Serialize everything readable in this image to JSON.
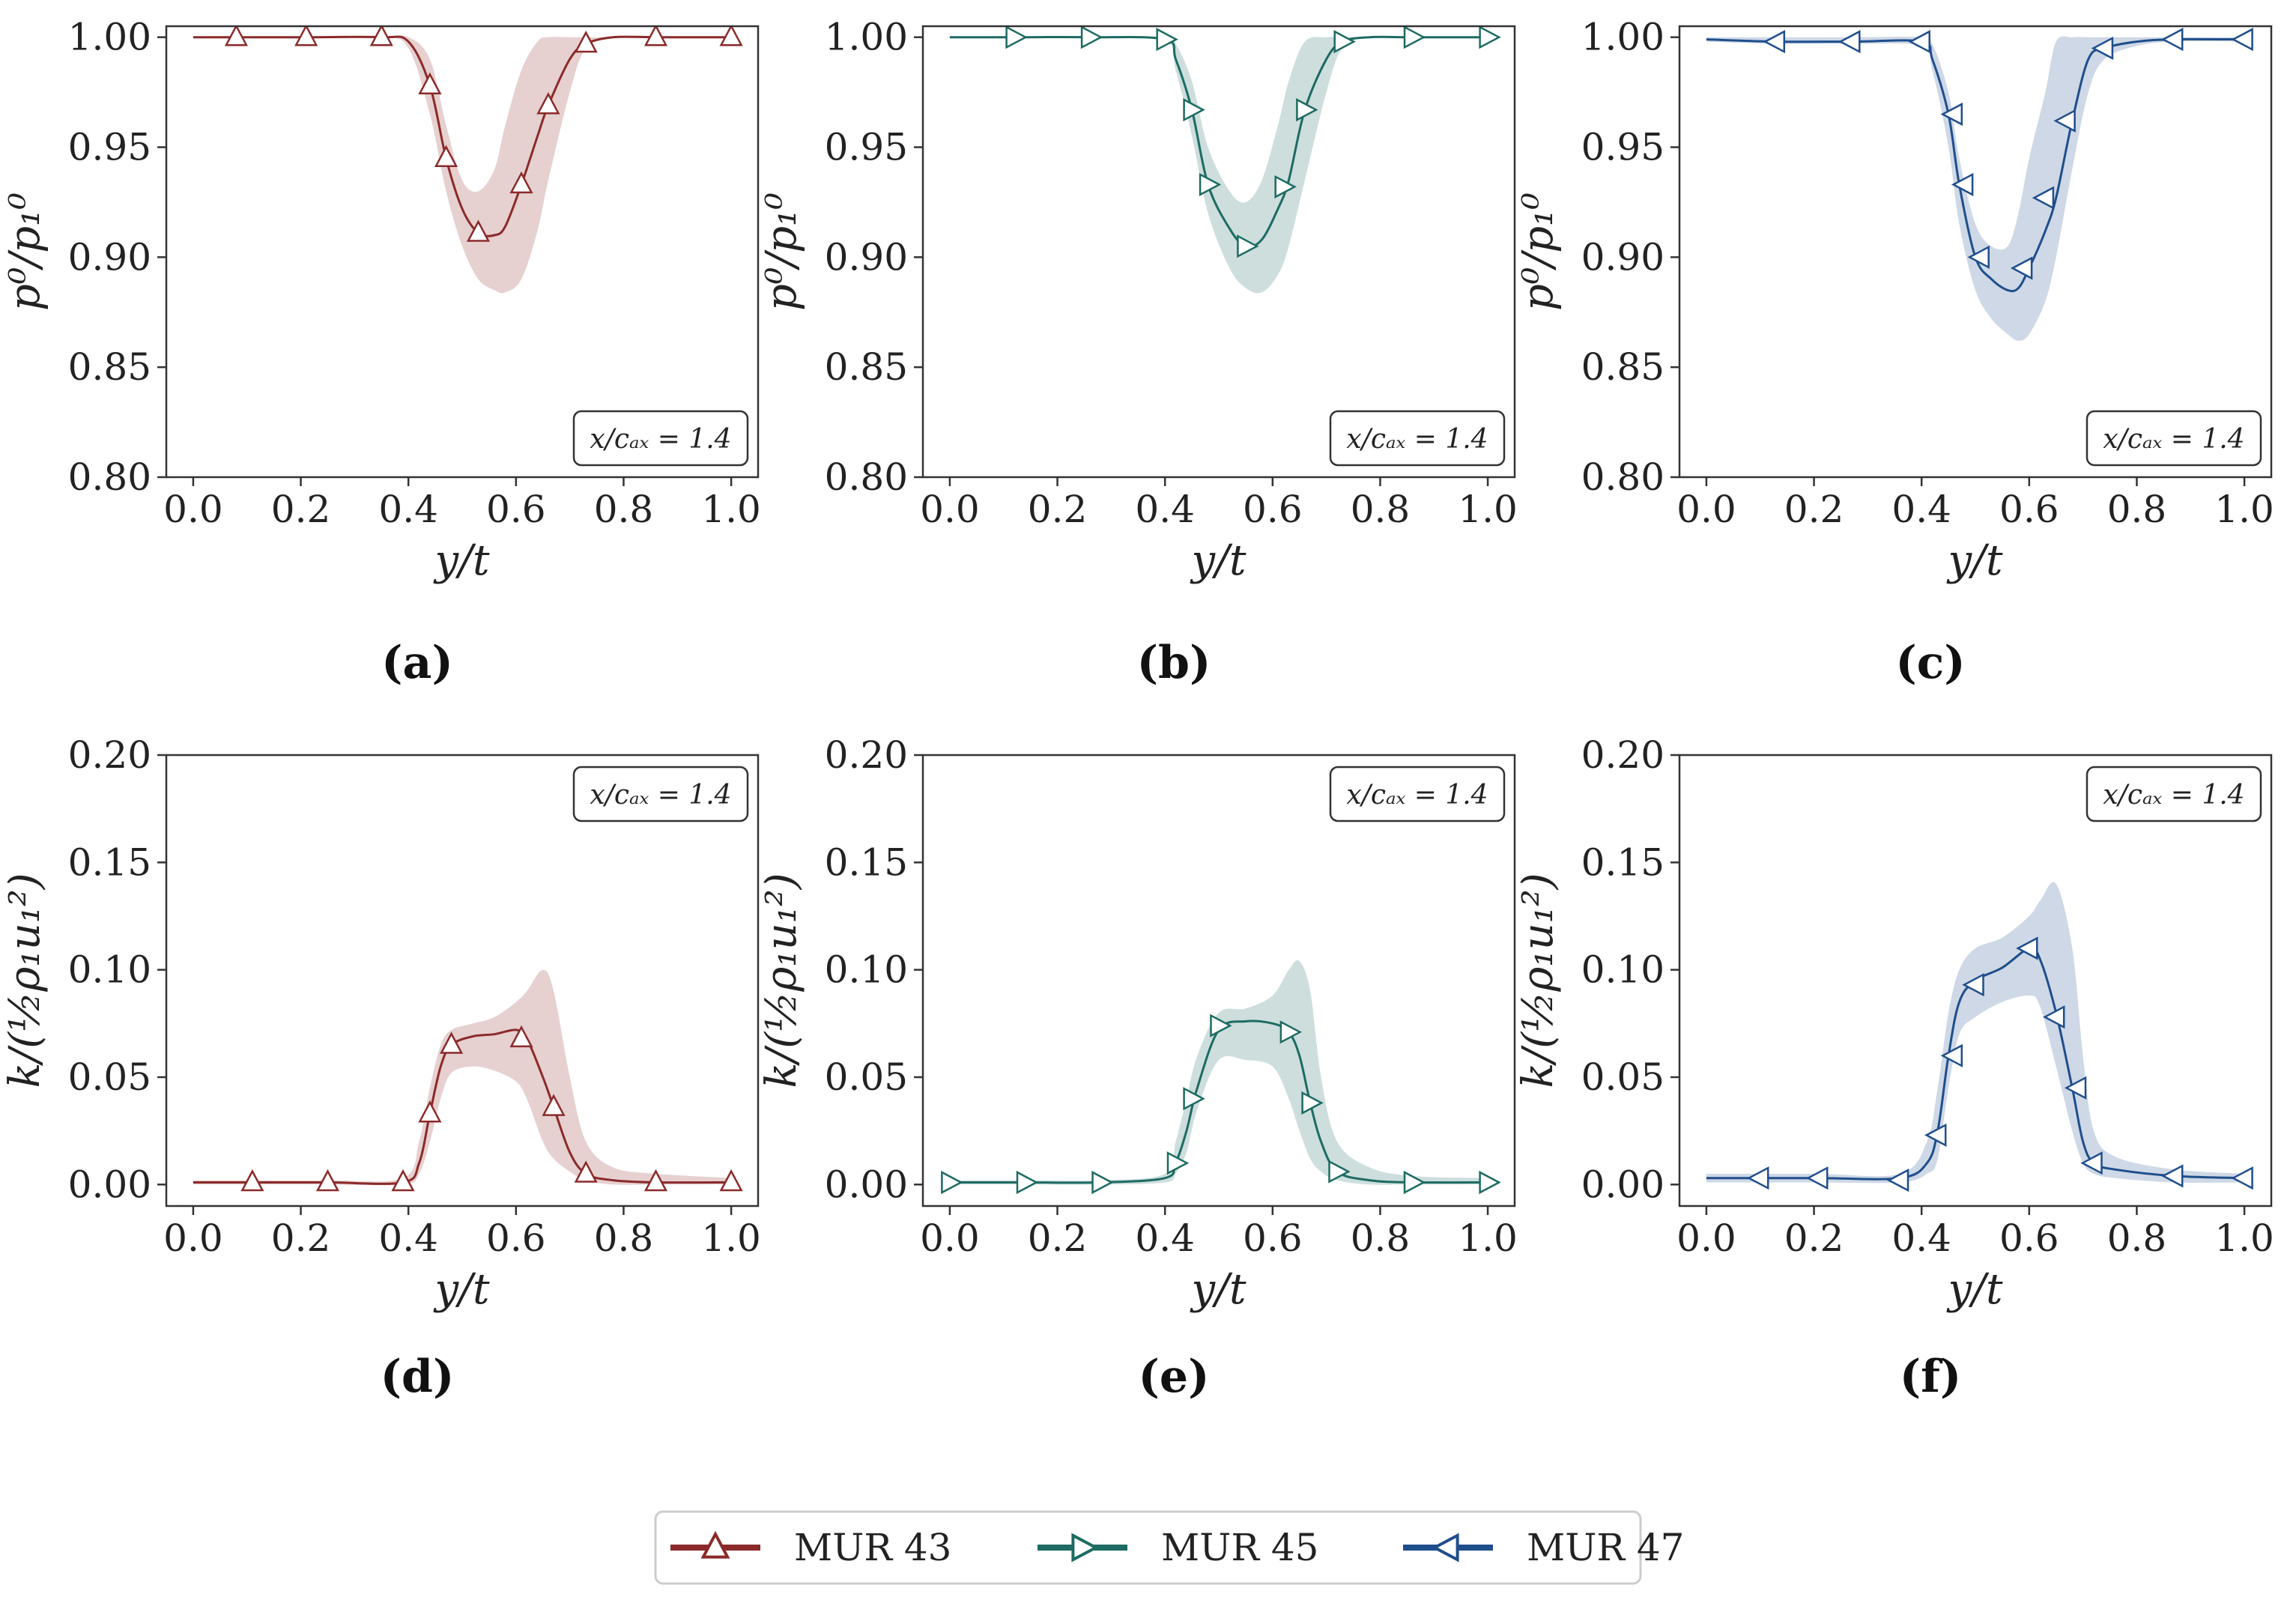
{
  "chart_data": [
    {
      "panel": "a",
      "type": "line",
      "caption": "(a)",
      "xlabel": "y/t",
      "ylabel": "p⁰/p₁⁰",
      "xlim": [
        -0.05,
        1.05
      ],
      "ylim": [
        0.8,
        1.005
      ],
      "xticks": [
        0.0,
        0.2,
        0.4,
        0.6,
        0.8,
        1.0
      ],
      "xtick_labels": [
        "0.0",
        "0.2",
        "0.4",
        "0.6",
        "0.8",
        "1.0"
      ],
      "yticks": [
        0.8,
        0.85,
        0.9,
        0.95,
        1.0
      ],
      "ytick_labels": [
        "0.80",
        "0.85",
        "0.90",
        "0.95",
        "1.00"
      ],
      "annotation": "x/cₐₓ = 1.4",
      "annotation_position": "bottom-right",
      "series": [
        {
          "name": "MUR 43",
          "color": "#8B2A2A",
          "marker": "triangle-up",
          "x": [
            0.0,
            0.08,
            0.21,
            0.35,
            0.4,
            0.44,
            0.47,
            0.5,
            0.53,
            0.56,
            0.58,
            0.61,
            0.64,
            0.66,
            0.7,
            0.73,
            0.78,
            0.86,
            1.0
          ],
          "y": [
            1.0,
            1.0,
            1.0,
            1.0,
            0.998,
            0.978,
            0.945,
            0.922,
            0.911,
            0.91,
            0.914,
            0.933,
            0.955,
            0.969,
            0.99,
            0.997,
            1.0,
            1.0,
            1.0
          ],
          "band_upper": [
            1.0,
            1.0,
            1.0,
            1.0,
            1.0,
            0.99,
            0.96,
            0.935,
            0.93,
            0.94,
            0.96,
            0.985,
            0.998,
            1.0,
            1.0,
            1.0,
            1.0,
            1.0,
            1.0
          ],
          "band_lower": [
            1.0,
            1.0,
            1.0,
            1.0,
            0.995,
            0.965,
            0.93,
            0.905,
            0.89,
            0.885,
            0.884,
            0.89,
            0.912,
            0.935,
            0.975,
            0.995,
            1.0,
            1.0,
            1.0
          ],
          "marker_x": [
            0.08,
            0.21,
            0.35,
            0.44,
            0.47,
            0.53,
            0.61,
            0.66,
            0.73,
            0.86,
            1.0
          ],
          "marker_y": [
            1.0,
            1.0,
            1.0,
            0.978,
            0.945,
            0.911,
            0.933,
            0.969,
            0.997,
            1.0,
            1.0
          ]
        }
      ]
    },
    {
      "panel": "b",
      "type": "line",
      "caption": "(b)",
      "xlabel": "y/t",
      "ylabel": "p⁰/p₁⁰",
      "xlim": [
        -0.05,
        1.05
      ],
      "ylim": [
        0.8,
        1.005
      ],
      "xticks": [
        0.0,
        0.2,
        0.4,
        0.6,
        0.8,
        1.0
      ],
      "xtick_labels": [
        "0.0",
        "0.2",
        "0.4",
        "0.6",
        "0.8",
        "1.0"
      ],
      "yticks": [
        0.8,
        0.85,
        0.9,
        0.95,
        1.0
      ],
      "ytick_labels": [
        "0.80",
        "0.85",
        "0.90",
        "0.95",
        "1.00"
      ],
      "annotation": "x/cₐₓ = 1.4",
      "annotation_position": "bottom-right",
      "series": [
        {
          "name": "MUR 45",
          "color": "#1D6B62",
          "marker": "triangle-right",
          "x": [
            0.0,
            0.12,
            0.26,
            0.4,
            0.42,
            0.45,
            0.48,
            0.52,
            0.55,
            0.58,
            0.61,
            0.63,
            0.66,
            0.7,
            0.73,
            0.78,
            0.86,
            1.0
          ],
          "y": [
            1.0,
            1.0,
            1.0,
            0.999,
            0.99,
            0.967,
            0.933,
            0.913,
            0.905,
            0.908,
            0.922,
            0.935,
            0.967,
            0.99,
            0.998,
            1.0,
            1.0,
            1.0
          ],
          "band_upper": [
            1.0,
            1.0,
            1.0,
            1.0,
            0.997,
            0.98,
            0.95,
            0.93,
            0.925,
            0.935,
            0.96,
            0.98,
            0.998,
            1.0,
            1.0,
            1.0,
            1.0,
            1.0
          ],
          "band_lower": [
            1.0,
            1.0,
            1.0,
            0.998,
            0.985,
            0.955,
            0.92,
            0.895,
            0.886,
            0.884,
            0.892,
            0.905,
            0.935,
            0.975,
            0.995,
            1.0,
            1.0,
            1.0
          ],
          "marker_x": [
            0.12,
            0.26,
            0.4,
            0.45,
            0.48,
            0.55,
            0.62,
            0.66,
            0.73,
            0.86,
            1.0
          ],
          "marker_y": [
            1.0,
            1.0,
            0.999,
            0.967,
            0.933,
            0.905,
            0.932,
            0.967,
            0.998,
            1.0,
            1.0
          ]
        }
      ]
    },
    {
      "panel": "c",
      "type": "line",
      "caption": "(c)",
      "xlabel": "y/t",
      "ylabel": "p⁰/p₁⁰",
      "xlim": [
        -0.05,
        1.05
      ],
      "ylim": [
        0.8,
        1.005
      ],
      "xticks": [
        0.0,
        0.2,
        0.4,
        0.6,
        0.8,
        1.0
      ],
      "xtick_labels": [
        "0.0",
        "0.2",
        "0.4",
        "0.6",
        "0.8",
        "1.0"
      ],
      "yticks": [
        0.8,
        0.85,
        0.9,
        0.95,
        1.0
      ],
      "ytick_labels": [
        "0.80",
        "0.85",
        "0.90",
        "0.95",
        "1.00"
      ],
      "annotation": "x/cₐₓ = 1.4",
      "annotation_position": "bottom-right",
      "series": [
        {
          "name": "MUR 47",
          "color": "#1F4E8C",
          "marker": "triangle-left",
          "x": [
            0.0,
            0.13,
            0.27,
            0.4,
            0.42,
            0.45,
            0.47,
            0.5,
            0.53,
            0.56,
            0.58,
            0.6,
            0.63,
            0.65,
            0.68,
            0.71,
            0.74,
            0.8,
            0.87,
            1.0
          ],
          "y": [
            0.999,
            0.998,
            0.998,
            0.998,
            0.99,
            0.965,
            0.933,
            0.9,
            0.89,
            0.885,
            0.886,
            0.895,
            0.912,
            0.927,
            0.962,
            0.99,
            0.995,
            0.998,
            0.999,
            0.999
          ],
          "band_upper": [
            1.0,
            1.0,
            1.0,
            1.0,
            0.997,
            0.975,
            0.945,
            0.915,
            0.905,
            0.905,
            0.92,
            0.945,
            0.975,
            0.998,
            1.0,
            1.0,
            1.0,
            1.0,
            1.0,
            1.0
          ],
          "band_lower": [
            0.998,
            0.997,
            0.997,
            0.996,
            0.985,
            0.95,
            0.915,
            0.885,
            0.872,
            0.865,
            0.862,
            0.865,
            0.88,
            0.9,
            0.94,
            0.975,
            0.99,
            0.996,
            0.998,
            0.998
          ],
          "marker_x": [
            0.13,
            0.27,
            0.4,
            0.46,
            0.48,
            0.51,
            0.59,
            0.63,
            0.67,
            0.74,
            0.87,
            1.0
          ],
          "marker_y": [
            0.998,
            0.998,
            0.998,
            0.965,
            0.933,
            0.9,
            0.895,
            0.927,
            0.962,
            0.995,
            0.999,
            0.999
          ]
        }
      ]
    },
    {
      "panel": "d",
      "type": "line",
      "caption": "(d)",
      "xlabel": "y/t",
      "ylabel": "k/(½ρ₁u₁²)",
      "xlim": [
        -0.05,
        1.05
      ],
      "ylim": [
        -0.01,
        0.2
      ],
      "xticks": [
        0.0,
        0.2,
        0.4,
        0.6,
        0.8,
        1.0
      ],
      "xtick_labels": [
        "0.0",
        "0.2",
        "0.4",
        "0.6",
        "0.8",
        "1.0"
      ],
      "yticks": [
        0.0,
        0.05,
        0.1,
        0.15,
        0.2
      ],
      "ytick_labels": [
        "0.00",
        "0.05",
        "0.10",
        "0.15",
        "0.20"
      ],
      "annotation": "x/cₐₓ = 1.4",
      "annotation_position": "top-right",
      "series": [
        {
          "name": "MUR 43",
          "color": "#8B2A2A",
          "marker": "triangle-up",
          "x": [
            0.0,
            0.11,
            0.25,
            0.39,
            0.42,
            0.44,
            0.46,
            0.48,
            0.52,
            0.56,
            0.6,
            0.62,
            0.65,
            0.67,
            0.7,
            0.73,
            0.78,
            0.86,
            1.0
          ],
          "y": [
            0.001,
            0.001,
            0.001,
            0.001,
            0.01,
            0.033,
            0.055,
            0.065,
            0.069,
            0.07,
            0.072,
            0.068,
            0.05,
            0.036,
            0.015,
            0.005,
            0.002,
            0.001,
            0.001
          ],
          "band_upper": [
            0.002,
            0.002,
            0.002,
            0.003,
            0.02,
            0.045,
            0.065,
            0.072,
            0.075,
            0.078,
            0.085,
            0.09,
            0.1,
            0.09,
            0.05,
            0.02,
            0.008,
            0.005,
            0.003
          ],
          "band_lower": [
            0.0,
            0.0,
            0.0,
            0.0,
            0.005,
            0.02,
            0.04,
            0.052,
            0.055,
            0.053,
            0.048,
            0.04,
            0.02,
            0.012,
            0.006,
            0.002,
            0.0,
            0.0,
            0.0
          ],
          "marker_x": [
            0.11,
            0.25,
            0.39,
            0.44,
            0.48,
            0.61,
            0.67,
            0.73,
            0.86,
            1.0
          ],
          "marker_y": [
            0.001,
            0.001,
            0.001,
            0.033,
            0.065,
            0.068,
            0.036,
            0.005,
            0.001,
            0.001
          ]
        }
      ]
    },
    {
      "panel": "e",
      "type": "line",
      "caption": "(e)",
      "xlabel": "y/t",
      "ylabel": "k/(½ρ₁u₁²)",
      "xlim": [
        -0.05,
        1.05
      ],
      "ylim": [
        -0.01,
        0.2
      ],
      "xticks": [
        0.0,
        0.2,
        0.4,
        0.6,
        0.8,
        1.0
      ],
      "xtick_labels": [
        "0.0",
        "0.2",
        "0.4",
        "0.6",
        "0.8",
        "1.0"
      ],
      "yticks": [
        0.0,
        0.05,
        0.1,
        0.15,
        0.2
      ],
      "ytick_labels": [
        "0.00",
        "0.05",
        "0.10",
        "0.15",
        "0.20"
      ],
      "annotation": "x/cₐₓ = 1.4",
      "annotation_position": "top-right",
      "series": [
        {
          "name": "MUR 45",
          "color": "#1D6B62",
          "marker": "triangle-right",
          "x": [
            0.0,
            0.14,
            0.28,
            0.4,
            0.42,
            0.44,
            0.46,
            0.5,
            0.55,
            0.6,
            0.63,
            0.65,
            0.67,
            0.69,
            0.72,
            0.78,
            0.86,
            1.0
          ],
          "y": [
            0.001,
            0.001,
            0.001,
            0.003,
            0.01,
            0.025,
            0.045,
            0.072,
            0.076,
            0.075,
            0.071,
            0.06,
            0.038,
            0.02,
            0.006,
            0.002,
            0.001,
            0.001
          ],
          "band_upper": [
            0.002,
            0.002,
            0.002,
            0.005,
            0.02,
            0.04,
            0.06,
            0.08,
            0.082,
            0.088,
            0.1,
            0.104,
            0.09,
            0.05,
            0.02,
            0.008,
            0.004,
            0.003
          ],
          "band_lower": [
            0.0,
            0.0,
            0.0,
            0.001,
            0.005,
            0.015,
            0.035,
            0.058,
            0.058,
            0.055,
            0.04,
            0.025,
            0.012,
            0.006,
            0.002,
            0.0,
            0.0,
            0.0
          ],
          "marker_x": [
            0.0,
            0.14,
            0.28,
            0.42,
            0.45,
            0.5,
            0.63,
            0.67,
            0.72,
            0.86,
            1.0
          ],
          "marker_y": [
            0.001,
            0.001,
            0.001,
            0.01,
            0.04,
            0.074,
            0.071,
            0.038,
            0.006,
            0.001,
            0.001
          ]
        }
      ]
    },
    {
      "panel": "f",
      "type": "line",
      "caption": "(f)",
      "xlabel": "y/t",
      "ylabel": "k/(½ρ₁u₁²)",
      "xlim": [
        -0.05,
        1.05
      ],
      "ylim": [
        -0.01,
        0.2
      ],
      "xticks": [
        0.0,
        0.2,
        0.4,
        0.6,
        0.8,
        1.0
      ],
      "xtick_labels": [
        "0.0",
        "0.2",
        "0.4",
        "0.6",
        "0.8",
        "1.0"
      ],
      "yticks": [
        0.0,
        0.05,
        0.1,
        0.15,
        0.2
      ],
      "ytick_labels": [
        "0.00",
        "0.05",
        "0.10",
        "0.15",
        "0.20"
      ],
      "annotation": "x/cₐₓ = 1.4",
      "annotation_position": "top-right",
      "series": [
        {
          "name": "MUR 47",
          "color": "#1F4E8C",
          "marker": "triangle-left",
          "x": [
            0.0,
            0.1,
            0.21,
            0.36,
            0.41,
            0.43,
            0.45,
            0.47,
            0.5,
            0.55,
            0.6,
            0.62,
            0.65,
            0.68,
            0.7,
            0.72,
            0.76,
            0.87,
            1.0
          ],
          "y": [
            0.003,
            0.003,
            0.003,
            0.003,
            0.01,
            0.025,
            0.06,
            0.085,
            0.095,
            0.101,
            0.11,
            0.105,
            0.08,
            0.045,
            0.02,
            0.01,
            0.007,
            0.004,
            0.003
          ],
          "band_upper": [
            0.005,
            0.005,
            0.005,
            0.005,
            0.02,
            0.045,
            0.08,
            0.1,
            0.11,
            0.115,
            0.125,
            0.132,
            0.14,
            0.11,
            0.06,
            0.025,
            0.013,
            0.007,
            0.005
          ],
          "band_lower": [
            0.001,
            0.001,
            0.001,
            0.001,
            0.005,
            0.012,
            0.045,
            0.07,
            0.078,
            0.085,
            0.088,
            0.083,
            0.055,
            0.025,
            0.01,
            0.005,
            0.003,
            0.001,
            0.001
          ],
          "marker_x": [
            0.1,
            0.21,
            0.36,
            0.43,
            0.46,
            0.5,
            0.6,
            0.65,
            0.69,
            0.72,
            0.87,
            1.0
          ],
          "marker_y": [
            0.003,
            0.003,
            0.002,
            0.023,
            0.06,
            0.093,
            0.11,
            0.078,
            0.045,
            0.01,
            0.004,
            0.003
          ]
        }
      ]
    }
  ],
  "legend": {
    "position": "bottom-center",
    "items": [
      {
        "label": "MUR 43",
        "color": "#8B2A2A",
        "marker": "triangle-up"
      },
      {
        "label": "MUR 45",
        "color": "#1D6B62",
        "marker": "triangle-right"
      },
      {
        "label": "MUR 47",
        "color": "#1F4E8C",
        "marker": "triangle-left"
      }
    ]
  }
}
